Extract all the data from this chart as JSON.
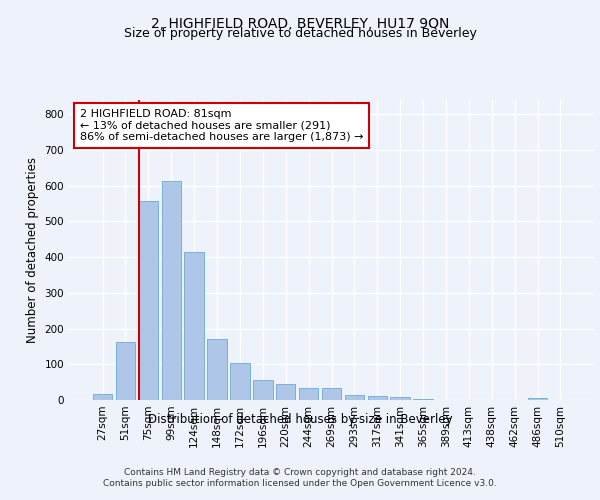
{
  "title": "2, HIGHFIELD ROAD, BEVERLEY, HU17 9QN",
  "subtitle": "Size of property relative to detached houses in Beverley",
  "xlabel": "Distribution of detached houses by size in Beverley",
  "ylabel": "Number of detached properties",
  "categories": [
    "27sqm",
    "51sqm",
    "75sqm",
    "99sqm",
    "124sqm",
    "148sqm",
    "172sqm",
    "196sqm",
    "220sqm",
    "244sqm",
    "269sqm",
    "293sqm",
    "317sqm",
    "341sqm",
    "365sqm",
    "389sqm",
    "413sqm",
    "438sqm",
    "462sqm",
    "486sqm",
    "510sqm"
  ],
  "values": [
    18,
    163,
    557,
    612,
    415,
    170,
    103,
    57,
    44,
    33,
    33,
    15,
    10,
    9,
    4,
    0,
    0,
    0,
    0,
    7,
    0
  ],
  "bar_color": "#aec6e8",
  "bar_edge_color": "#5a9fd4",
  "vline_color": "#cc0000",
  "vline_x_index": 2,
  "annotation_text": "2 HIGHFIELD ROAD: 81sqm\n← 13% of detached houses are smaller (291)\n86% of semi-detached houses are larger (1,873) →",
  "annotation_box_color": "#ffffff",
  "annotation_box_edge": "#cc0000",
  "ylim": [
    0,
    840
  ],
  "yticks": [
    0,
    100,
    200,
    300,
    400,
    500,
    600,
    700,
    800
  ],
  "footer_text": "Contains HM Land Registry data © Crown copyright and database right 2024.\nContains public sector information licensed under the Open Government Licence v3.0.",
  "background_color": "#eef2fb",
  "axes_background": "#eef2fb",
  "grid_color": "#ffffff",
  "title_fontsize": 10,
  "subtitle_fontsize": 9,
  "axis_label_fontsize": 8.5,
  "tick_fontsize": 7.5,
  "annotation_fontsize": 8,
  "footer_fontsize": 6.5
}
